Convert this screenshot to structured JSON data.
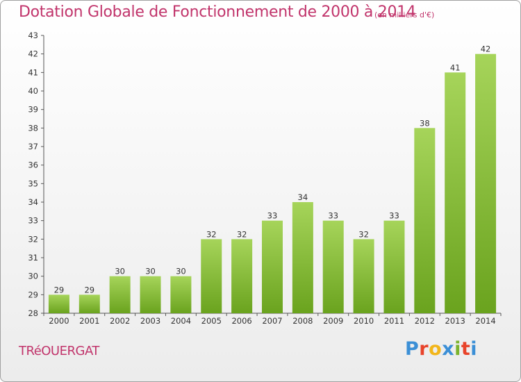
{
  "header": {
    "title": "Dotation Globale de Fonctionnement de 2000 à 2014",
    "subtitle": "(en milliers d'€)"
  },
  "footer": {
    "commune": "TRéOUERGAT",
    "brand": "Proxiti",
    "brand_colors": [
      "#3b8fd6",
      "#e8432a",
      "#f2b61b",
      "#3b8fd6",
      "#7bb32e",
      "#e8432a",
      "#3b8fd6"
    ]
  },
  "chart_data": {
    "type": "bar",
    "title": "Dotation Globale de Fonctionnement de 2000 à 2014",
    "subtitle": "(en milliers d'€)",
    "xlabel": "",
    "ylabel": "",
    "categories": [
      "2000",
      "2001",
      "2002",
      "2003",
      "2004",
      "2005",
      "2006",
      "2007",
      "2008",
      "2009",
      "2010",
      "2011",
      "2012",
      "2013",
      "2014"
    ],
    "values": [
      29,
      29,
      30,
      30,
      30,
      32,
      32,
      33,
      34,
      33,
      32,
      33,
      38,
      41,
      42
    ],
    "ylim": [
      28,
      43
    ],
    "yticks": [
      28,
      29,
      30,
      31,
      32,
      33,
      34,
      35,
      36,
      37,
      38,
      39,
      40,
      41,
      42,
      43
    ],
    "grid": false,
    "bar_color_top": "#a6d45a",
    "bar_color_bottom": "#6aa31e"
  }
}
